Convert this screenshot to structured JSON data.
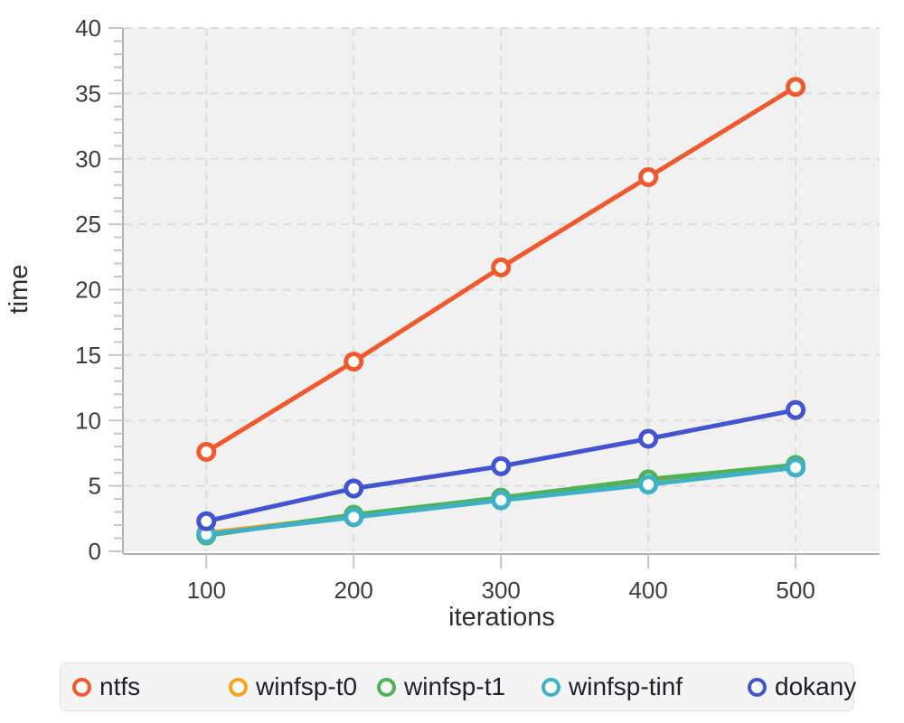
{
  "chart_data": {
    "type": "line",
    "title": "",
    "xlabel": "iterations",
    "ylabel": "time",
    "x": [
      100,
      200,
      300,
      400,
      500
    ],
    "series": [
      {
        "name": "ntfs",
        "color": "#f0592e",
        "values": [
          7.6,
          14.5,
          21.7,
          28.6,
          35.5
        ]
      },
      {
        "name": "winfsp-t0",
        "color": "#f6a41f",
        "values": [
          1.4,
          2.7,
          4.0,
          5.3,
          6.5
        ]
      },
      {
        "name": "winfsp-t1",
        "color": "#4fb254",
        "values": [
          1.2,
          2.8,
          4.1,
          5.5,
          6.6
        ]
      },
      {
        "name": "winfsp-tinf",
        "color": "#3eb0c7",
        "values": [
          1.3,
          2.6,
          3.9,
          5.1,
          6.4
        ]
      },
      {
        "name": "dokany",
        "color": "#4354d0",
        "values": [
          2.3,
          4.8,
          6.5,
          8.6,
          10.8
        ]
      }
    ],
    "xticks": [
      100,
      200,
      300,
      400,
      500
    ],
    "yticks": [
      0,
      5,
      10,
      15,
      20,
      25,
      30,
      35,
      40
    ],
    "y_minor_tick_step": 1,
    "xlim": [
      44,
      557
    ],
    "ylim": [
      0,
      40
    ],
    "grid": "dashed",
    "legend_position": "bottom",
    "marker": "open-circle"
  },
  "theme": {
    "plot_bg": "#f1f1f2",
    "page_bg": "#ffffff",
    "grid_color": "#dcdcdc",
    "axis_color": "#b0b0b0",
    "tick_color": "#c6c6c6",
    "tick_label_color": "#3d3d3d",
    "axis_label_color": "#2e2e2e",
    "legend_bg": "#f4f4f4",
    "legend_border": "#e2e2e2",
    "legend_text_color": "#20202a"
  }
}
